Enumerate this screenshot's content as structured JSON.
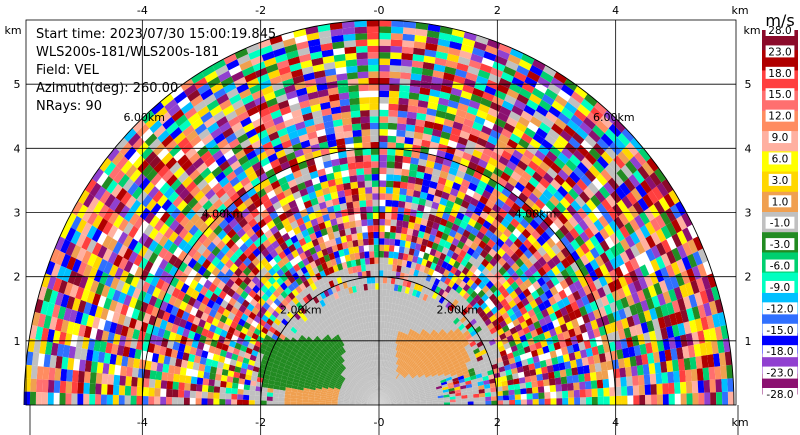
{
  "chart_data": {
    "type": "heatmap",
    "description_lines": [
      "Start time: 2023/07/30 15:00:19.845",
      "WLS200s-181/WLS200s-181",
      "Field: VEL",
      "Azimuth(deg): 260.00",
      "NRays: 90"
    ],
    "x_unit": "km",
    "y_unit": "km",
    "xlim": [
      -6,
      6
    ],
    "ylim": [
      0,
      6
    ],
    "x_ticks": [
      -4,
      -2,
      0,
      2,
      4
    ],
    "x_tick_labels": [
      "-4",
      "-2",
      "-0",
      "2",
      "4"
    ],
    "y_ticks": [
      1,
      2,
      3,
      4,
      5
    ],
    "y_tick_labels": [
      "1",
      "2",
      "3",
      "4",
      "5"
    ],
    "max_range_km": 6.0,
    "range_rings_km": [
      2,
      4,
      6
    ],
    "range_ring_labels": [
      "2.00km",
      "4.00km",
      "6.00km"
    ],
    "grid": true,
    "colorbar": {
      "title": "m/s",
      "levels": [
        "28.0",
        "23.0",
        "18.0",
        "15.0",
        "12.0",
        "9.0",
        "6.0",
        "3.0",
        "1.0",
        "-1.0",
        "-3.0",
        "-6.0",
        "-9.0",
        "-12.0",
        "-15.0",
        "-18.0",
        "-23.0",
        "-28.0"
      ],
      "colors": [
        "#8b0a2a",
        "#b00000",
        "#ff3f3f",
        "#ff6f6f",
        "#ff8c60",
        "#ffb0a0",
        "#ffff00",
        "#ffd700",
        "#f0a050",
        "#c0c0c0",
        "#228b22",
        "#00d070",
        "#00ffc0",
        "#00c0ff",
        "#3070ff",
        "#0000ff",
        "#9040d0",
        "#8b1070"
      ]
    },
    "near_field": {
      "zero_velocity_color": "#c0c0c0",
      "negative_region_color": "#228b22",
      "positive_region_color": "#f0a050"
    }
  }
}
